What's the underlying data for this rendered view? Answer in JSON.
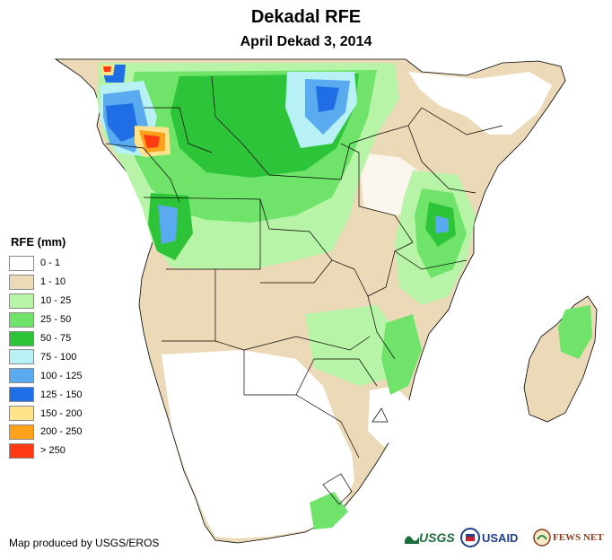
{
  "title": "Dekadal RFE",
  "subtitle": "April Dekad 3, 2014",
  "legend": {
    "title": "RFE (mm)",
    "items": [
      {
        "label": "0 - 1",
        "color": "#ffffff"
      },
      {
        "label": "1 - 10",
        "color": "#ecd9b8"
      },
      {
        "label": "10 - 25",
        "color": "#b8f4a8"
      },
      {
        "label": "25 - 50",
        "color": "#6fe36a"
      },
      {
        "label": "50 - 75",
        "color": "#2ec43a"
      },
      {
        "label": "75 - 100",
        "color": "#b7f0f5"
      },
      {
        "label": "100 - 125",
        "color": "#5aaaf0"
      },
      {
        "label": "125 - 150",
        "color": "#1f6ee6"
      },
      {
        "label": "150 - 200",
        "color": "#ffe38a"
      },
      {
        "label": "200 - 250",
        "color": "#ffa21a"
      },
      {
        "label": "> 250",
        "color": "#ff3a12"
      }
    ]
  },
  "credit": "Map produced by USGS/EROS",
  "logos": {
    "usgs": "USGS",
    "usaid": "USAID",
    "fews": "FEWS NET"
  }
}
